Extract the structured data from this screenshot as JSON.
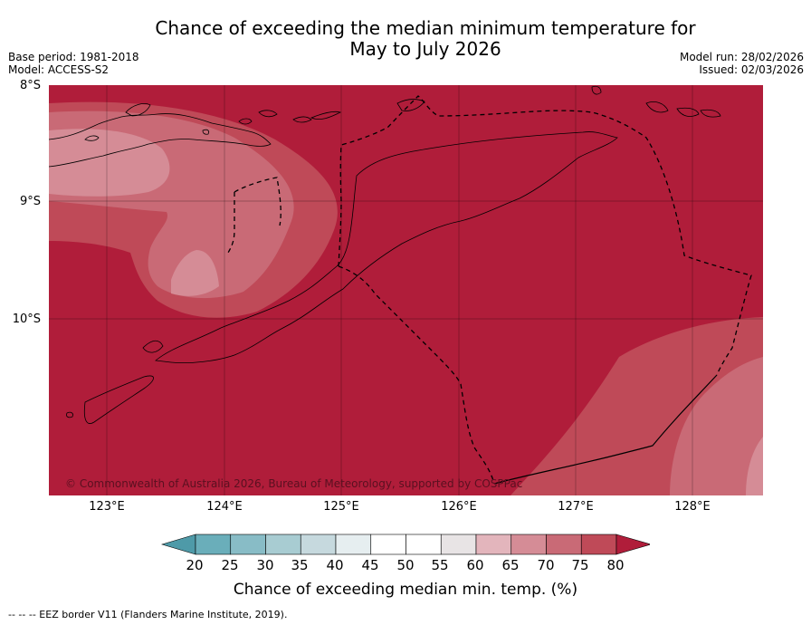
{
  "title_line1": "Chance of exceeding the median minimum temperature for",
  "title_line2": "May to July 2026",
  "base_period": "Base period: 1981-2018",
  "model": "Model: ACCESS-S2",
  "model_run": "Model run: 28/02/2026",
  "issued": "Issued: 02/03/2026",
  "copyright": "© Commonwealth of Australia 2026, Bureau of Meteorology, supported by COSPPac",
  "lat_labels": [
    "8°S",
    "9°S",
    "10°S"
  ],
  "lon_labels": [
    "123°E",
    "124°E",
    "125°E",
    "126°E",
    "127°E",
    "128°E"
  ],
  "colorbar": {
    "ticks": [
      "20",
      "25",
      "30",
      "35",
      "40",
      "45",
      "50",
      "55",
      "60",
      "65",
      "70",
      "75",
      "80"
    ],
    "colors": [
      "#4e9aa8",
      "#6aaeba",
      "#88bcc6",
      "#a8ccd2",
      "#c6d9de",
      "#e6eef0",
      "#ffffff",
      "#ffffff",
      "#e8e4e5",
      "#e3b5bc",
      "#d58c96",
      "#c96a76",
      "#bf4a58",
      "#b01d3a"
    ],
    "label": "Chance of exceeding median min. temp. (%)"
  },
  "footer": "--  --  -- EEZ border V11 (Flanders Marine Institute, 2019)."
}
